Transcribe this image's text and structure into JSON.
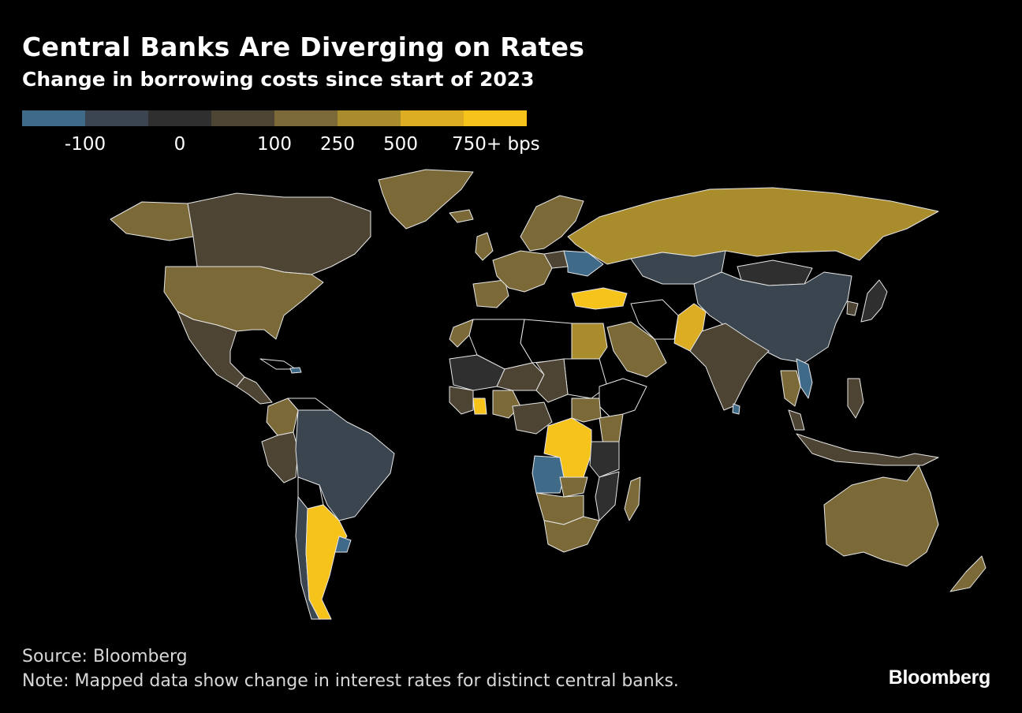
{
  "header": {
    "title": "Central Banks Are Diverging on Rates",
    "subtitle": "Change in borrowing costs since start of 2023"
  },
  "legend": {
    "colors": [
      "#3f6a88",
      "#3a4550",
      "#2f2f2f",
      "#4d4433",
      "#7b6a37",
      "#a98c2c",
      "#dcad22",
      "#f6c31b"
    ],
    "ticks": [
      "-100",
      "0",
      "100",
      "250",
      "500",
      "750+ bps"
    ]
  },
  "map": {
    "colors": {
      "cut": "#3f6a88",
      "small_cut": "#3a4550",
      "flat": "#2f2f2f",
      "low_hike": "#4d4433",
      "mid_hike": "#7b6a37",
      "high_hike": "#a98c2c",
      "very_high": "#dcad22",
      "extreme": "#f6c31b",
      "no_data": "#000000",
      "border": "#e6e6e6"
    }
  },
  "footer": {
    "source": "Source: Bloomberg",
    "note": "Note: Mapped data show change in interest rates for distinct central banks.",
    "logo": "Bloomberg"
  }
}
